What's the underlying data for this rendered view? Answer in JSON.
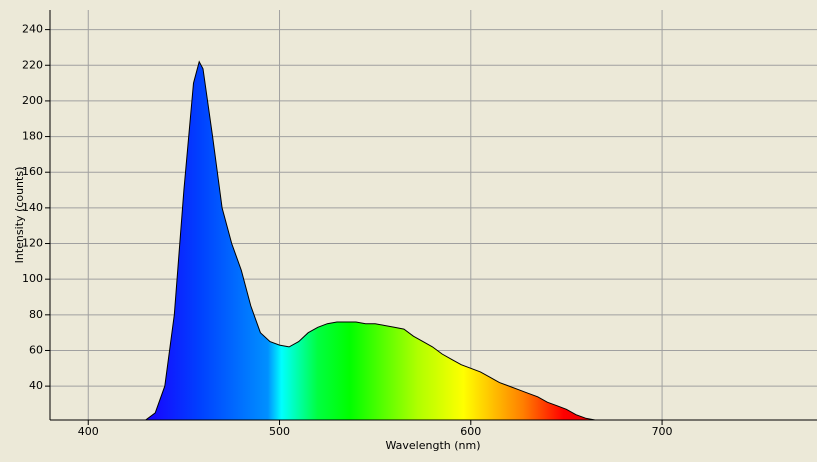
{
  "chart_data": {
    "type": "area",
    "xlabel": "Wavelength (nm)",
    "ylabel": "Intensity (counts)",
    "x": [
      430,
      435,
      440,
      445,
      450,
      455,
      458,
      460,
      465,
      470,
      475,
      480,
      485,
      490,
      495,
      500,
      505,
      510,
      515,
      520,
      525,
      530,
      535,
      540,
      545,
      550,
      555,
      560,
      565,
      570,
      575,
      580,
      585,
      590,
      595,
      600,
      605,
      610,
      615,
      620,
      625,
      630,
      635,
      640,
      645,
      650,
      655,
      660,
      665
    ],
    "values": [
      21,
      25,
      40,
      80,
      150,
      210,
      222,
      218,
      180,
      140,
      120,
      105,
      85,
      70,
      65,
      63,
      62,
      65,
      70,
      73,
      75,
      76,
      76,
      76,
      75,
      75,
      74,
      73,
      72,
      68,
      65,
      62,
      58,
      55,
      52,
      50,
      48,
      45,
      42,
      40,
      38,
      36,
      34,
      31,
      29,
      27,
      24,
      22,
      21
    ],
    "xlim": [
      380,
      781
    ],
    "xticks": [
      400,
      500,
      600,
      700
    ],
    "ylim": [
      21,
      251
    ],
    "yticks": [
      40,
      60,
      80,
      100,
      120,
      140,
      160,
      180,
      200,
      220,
      240
    ],
    "grid": true,
    "line_color": "#000000"
  }
}
